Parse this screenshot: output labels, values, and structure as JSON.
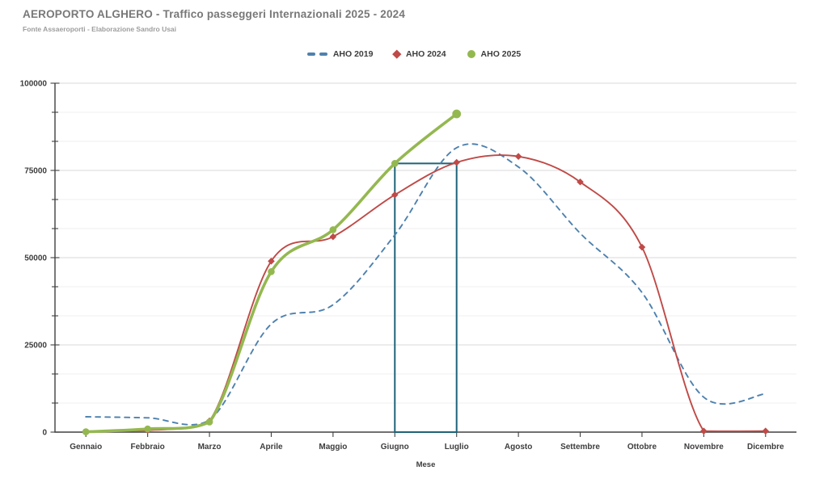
{
  "title": "AEROPORTO ALGHERO - Traffico passeggeri Internazionali 2025 - 2024",
  "subtitle": "Fonte Assaeroporti - Elaborazione Sandro Usai",
  "colors": {
    "axis": "#404040",
    "major_grid": "#d9d9d9",
    "minor_grid": "#efefef",
    "tick_text": "#3d3d3d",
    "title_text": "#787878",
    "annotation": "#1e6378"
  },
  "chart_data": {
    "type": "line",
    "title": "AEROPORTO ALGHERO - Traffico passeggeri Internazionali 2025 - 2024",
    "subtitle": "Fonte Assaeroporti - Elaborazione Sandro Usai",
    "xlabel": "Mese",
    "ylabel": "",
    "ylim": [
      0,
      100000
    ],
    "y_ticks": [
      0,
      25000,
      50000,
      75000,
      100000
    ],
    "y_minor_divisions": 12,
    "grid": true,
    "legend_position": "top-center",
    "categories": [
      "Gennaio",
      "Febbraio",
      "Marzo",
      "Aprile",
      "Maggio",
      "Giugno",
      "Luglio",
      "Agosto",
      "Settembre",
      "Ottobre",
      "Novembre",
      "Dicembre"
    ],
    "series": [
      {
        "name": "AHO 2019",
        "color": "#4e81ae",
        "line_style": "dashed",
        "marker": "none",
        "values": [
          4400,
          4100,
          3400,
          31000,
          36500,
          56500,
          81500,
          76000,
          57000,
          40000,
          10000,
          11000
        ]
      },
      {
        "name": "AHO 2024",
        "color": "#bf4a47",
        "line_style": "solid",
        "marker": "diamond",
        "values": [
          100,
          500,
          3200,
          49000,
          56000,
          68000,
          77300,
          79000,
          71700,
          53000,
          300,
          300
        ]
      },
      {
        "name": "AHO 2025",
        "color": "#94b850",
        "line_style": "solid",
        "marker": "circle",
        "values": [
          100,
          900,
          2900,
          46000,
          58000,
          77000,
          91200
        ]
      }
    ],
    "annotation_box": {
      "from_month": "Giugno",
      "to_month": "Luglio",
      "top_value": 77000,
      "color": "#1e6378"
    }
  }
}
